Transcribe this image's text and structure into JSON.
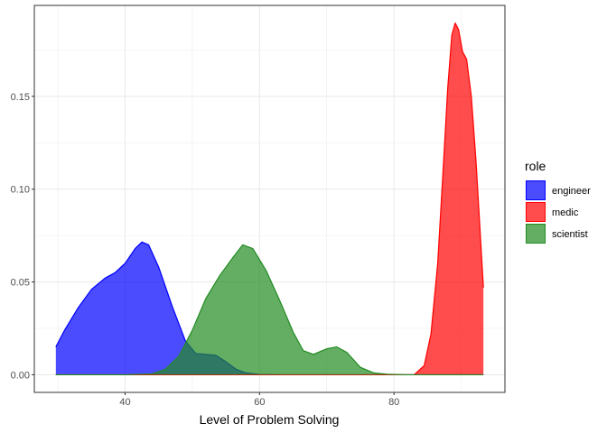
{
  "chart_data": {
    "type": "area",
    "chart_subtype": "density",
    "title": "",
    "xlabel": "Level of Problem Solving",
    "ylabel": "",
    "xlim": [
      26.5,
      96.5
    ],
    "ylim": [
      -0.0095,
      0.199
    ],
    "x_ticks": [
      40,
      60,
      80
    ],
    "x_tick_labels": [
      "40",
      "60",
      "80"
    ],
    "y_ticks": [
      0.0,
      0.05,
      0.1,
      0.15
    ],
    "y_tick_labels": [
      "0.00",
      "0.05",
      "0.10",
      "0.15"
    ],
    "grid": true,
    "theme": "bw",
    "fill_alpha": 0.7,
    "legend": {
      "title": "role",
      "position": "right"
    },
    "series": [
      {
        "name": "engineer",
        "color": "#0000FF",
        "x": [
          29.7,
          31,
          33,
          35,
          37,
          38.5,
          40,
          41.5,
          42.5,
          43.5,
          45,
          47,
          49,
          50.5,
          52,
          53.5,
          55,
          56.5,
          58,
          60,
          63,
          70,
          80,
          93.3
        ],
        "y": [
          0.015,
          0.024,
          0.036,
          0.046,
          0.052,
          0.055,
          0.06,
          0.068,
          0.0715,
          0.07,
          0.058,
          0.037,
          0.018,
          0.0115,
          0.011,
          0.0105,
          0.007,
          0.003,
          0.001,
          0.0002,
          0,
          0,
          0,
          0
        ]
      },
      {
        "name": "medic",
        "color": "#FF0000",
        "x": [
          29.7,
          60,
          80,
          83,
          84.5,
          85.5,
          86.5,
          87.3,
          88,
          88.6,
          89.1,
          89.6,
          90.2,
          90.8,
          91.5,
          92.2,
          92.8,
          93.3
        ],
        "y": [
          0,
          0,
          0,
          0,
          0.005,
          0.022,
          0.06,
          0.11,
          0.155,
          0.183,
          0.1895,
          0.186,
          0.174,
          0.17,
          0.15,
          0.115,
          0.078,
          0.047
        ]
      },
      {
        "name": "scientist",
        "color": "#228B22",
        "x": [
          29.7,
          40,
          44,
          46,
          48,
          50,
          52,
          54,
          56,
          57.5,
          59,
          61,
          63,
          65,
          66.5,
          68,
          70,
          71.5,
          73,
          75,
          77,
          79,
          82,
          93.3
        ],
        "y": [
          0,
          0,
          0.0005,
          0.003,
          0.01,
          0.024,
          0.041,
          0.053,
          0.063,
          0.07,
          0.068,
          0.056,
          0.04,
          0.023,
          0.013,
          0.011,
          0.014,
          0.015,
          0.012,
          0.004,
          0.001,
          0.0003,
          0,
          0
        ]
      }
    ]
  }
}
